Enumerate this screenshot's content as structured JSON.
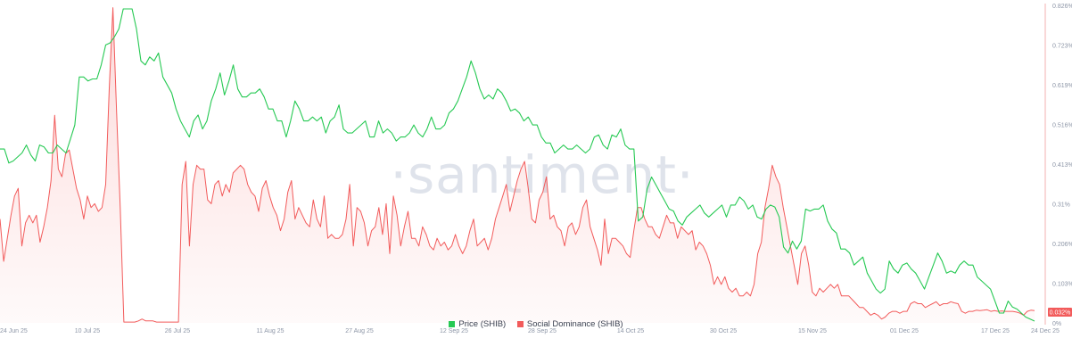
{
  "watermark": "·santiment·",
  "legend": [
    {
      "label": "Price (SHIB)",
      "color": "#26c953"
    },
    {
      "label": "Social Dominance (SHIB)",
      "color": "#f25b5b"
    }
  ],
  "chart_data": {
    "type": "line",
    "x_labels": [
      "24 Jun 25",
      "10 Jul 25",
      "26 Jul 25",
      "11 Aug 25",
      "27 Aug 25",
      "12 Sep 25",
      "28 Sep 25",
      "14 Oct 25",
      "30 Oct 25",
      "15 Nov 25",
      "01 Dec 25",
      "17 Dec 25",
      "24 Dec 25"
    ],
    "y_right_ticks": [
      "0.826%",
      "0.723%",
      "0.619%",
      "0.516%",
      "0.413%",
      "0.31%",
      "0.206%",
      "0.103%",
      "0%"
    ],
    "y_right_range": [
      0,
      0.826
    ],
    "current_value_label": "0.032%",
    "grid": false,
    "legend_position": "bottom",
    "series": [
      {
        "name": "Price (SHIB)",
        "color": "#26c953",
        "axis": "hidden",
        "values": [
          0.45,
          0.45,
          0.415,
          0.42,
          0.43,
          0.44,
          0.46,
          0.435,
          0.42,
          0.46,
          0.455,
          0.44,
          0.44,
          0.46,
          0.45,
          0.44,
          0.475,
          0.51,
          0.63,
          0.63,
          0.62,
          0.625,
          0.625,
          0.66,
          0.71,
          0.715,
          0.73,
          0.75,
          0.8,
          0.8,
          0.8,
          0.75,
          0.67,
          0.66,
          0.68,
          0.67,
          0.69,
          0.63,
          0.61,
          0.59,
          0.55,
          0.52,
          0.5,
          0.48,
          0.52,
          0.535,
          0.5,
          0.52,
          0.57,
          0.6,
          0.64,
          0.585,
          0.62,
          0.66,
          0.6,
          0.58,
          0.58,
          0.59,
          0.59,
          0.6,
          0.58,
          0.55,
          0.55,
          0.52,
          0.52,
          0.48,
          0.52,
          0.57,
          0.55,
          0.52,
          0.52,
          0.53,
          0.52,
          0.53,
          0.49,
          0.52,
          0.53,
          0.56,
          0.5,
          0.49,
          0.49,
          0.5,
          0.51,
          0.52,
          0.48,
          0.48,
          0.52,
          0.49,
          0.5,
          0.49,
          0.47,
          0.48,
          0.48,
          0.49,
          0.51,
          0.49,
          0.48,
          0.5,
          0.53,
          0.5,
          0.5,
          0.51,
          0.54,
          0.55,
          0.57,
          0.6,
          0.63,
          0.67,
          0.64,
          0.6,
          0.575,
          0.585,
          0.575,
          0.6,
          0.59,
          0.57,
          0.545,
          0.55,
          0.54,
          0.52,
          0.53,
          0.51,
          0.51,
          0.48,
          0.465,
          0.465,
          0.44,
          0.45,
          0.46,
          0.45,
          0.45,
          0.46,
          0.45,
          0.44,
          0.45,
          0.48,
          0.485,
          0.46,
          0.45,
          0.485,
          0.48,
          0.5,
          0.46,
          0.45,
          0.45,
          0.27,
          0.28,
          0.35,
          0.38,
          0.36,
          0.34,
          0.32,
          0.3,
          0.295,
          0.27,
          0.26,
          0.28,
          0.29,
          0.3,
          0.31,
          0.29,
          0.28,
          0.29,
          0.3,
          0.31,
          0.28,
          0.31,
          0.31,
          0.33,
          0.32,
          0.3,
          0.31,
          0.28,
          0.275,
          0.3,
          0.31,
          0.305,
          0.28,
          0.205,
          0.19,
          0.22,
          0.2,
          0.22,
          0.3,
          0.295,
          0.3,
          0.3,
          0.31,
          0.27,
          0.25,
          0.24,
          0.2,
          0.2,
          0.19,
          0.16,
          0.17,
          0.18,
          0.14,
          0.12,
          0.1,
          0.09,
          0.1,
          0.17,
          0.15,
          0.14,
          0.16,
          0.165,
          0.15,
          0.14,
          0.12,
          0.1,
          0.13,
          0.16,
          0.19,
          0.17,
          0.14,
          0.145,
          0.14,
          0.16,
          0.17,
          0.16,
          0.16,
          0.13,
          0.12,
          0.11,
          0.1,
          0.07,
          0.04,
          0.04,
          0.07,
          0.055,
          0.05,
          0.04,
          0.03,
          0.025,
          0.02
        ]
      },
      {
        "name": "Social Dominance (SHIB)",
        "color": "#f25b5b",
        "axis": "right",
        "values": [
          0.27,
          0.16,
          0.22,
          0.28,
          0.33,
          0.35,
          0.2,
          0.26,
          0.28,
          0.26,
          0.28,
          0.21,
          0.25,
          0.3,
          0.37,
          0.54,
          0.4,
          0.38,
          0.44,
          0.45,
          0.4,
          0.35,
          0.32,
          0.27,
          0.33,
          0.3,
          0.31,
          0.29,
          0.3,
          0.36,
          0.61,
          0.82,
          0.55,
          0.3,
          0.002,
          0.002,
          0.002,
          0.002,
          0.005,
          0.01,
          0.005,
          0.005,
          0.005,
          0.002,
          0.002,
          0.002,
          0.002,
          0.002,
          0.002,
          0.002,
          0.36,
          0.42,
          0.2,
          0.36,
          0.41,
          0.4,
          0.4,
          0.32,
          0.31,
          0.36,
          0.37,
          0.33,
          0.36,
          0.34,
          0.39,
          0.4,
          0.41,
          0.4,
          0.36,
          0.34,
          0.33,
          0.29,
          0.35,
          0.37,
          0.33,
          0.3,
          0.28,
          0.24,
          0.27,
          0.34,
          0.37,
          0.27,
          0.3,
          0.28,
          0.26,
          0.25,
          0.32,
          0.27,
          0.25,
          0.33,
          0.22,
          0.23,
          0.22,
          0.22,
          0.23,
          0.27,
          0.36,
          0.2,
          0.3,
          0.29,
          0.26,
          0.2,
          0.24,
          0.25,
          0.3,
          0.23,
          0.31,
          0.18,
          0.33,
          0.28,
          0.2,
          0.25,
          0.29,
          0.22,
          0.22,
          0.2,
          0.25,
          0.23,
          0.2,
          0.19,
          0.22,
          0.2,
          0.21,
          0.19,
          0.2,
          0.23,
          0.2,
          0.18,
          0.2,
          0.24,
          0.27,
          0.2,
          0.21,
          0.22,
          0.19,
          0.22,
          0.27,
          0.3,
          0.33,
          0.36,
          0.29,
          0.33,
          0.37,
          0.4,
          0.42,
          0.35,
          0.27,
          0.26,
          0.32,
          0.34,
          0.38,
          0.27,
          0.28,
          0.25,
          0.24,
          0.2,
          0.25,
          0.26,
          0.23,
          0.25,
          0.3,
          0.32,
          0.25,
          0.22,
          0.19,
          0.15,
          0.27,
          0.18,
          0.22,
          0.22,
          0.21,
          0.2,
          0.18,
          0.17,
          0.24,
          0.3,
          0.3,
          0.27,
          0.25,
          0.25,
          0.23,
          0.22,
          0.25,
          0.28,
          0.26,
          0.26,
          0.22,
          0.25,
          0.24,
          0.23,
          0.24,
          0.19,
          0.21,
          0.2,
          0.18,
          0.15,
          0.1,
          0.12,
          0.1,
          0.12,
          0.09,
          0.08,
          0.09,
          0.07,
          0.07,
          0.08,
          0.07,
          0.1,
          0.18,
          0.21,
          0.3,
          0.35,
          0.41,
          0.38,
          0.36,
          0.3,
          0.25,
          0.2,
          0.15,
          0.1,
          0.18,
          0.2,
          0.15,
          0.08,
          0.07,
          0.09,
          0.08,
          0.09,
          0.1,
          0.09,
          0.1,
          0.07,
          0.07,
          0.07,
          0.06,
          0.05,
          0.04,
          0.04,
          0.03,
          0.02,
          0.025,
          0.02,
          0.01,
          0.015,
          0.025,
          0.03,
          0.03,
          0.025,
          0.03,
          0.03,
          0.05,
          0.055,
          0.05,
          0.05,
          0.04,
          0.045,
          0.05,
          0.055,
          0.045,
          0.05,
          0.05,
          0.055,
          0.052,
          0.05,
          0.03,
          0.025,
          0.03,
          0.03,
          0.033,
          0.032,
          0.033,
          0.034,
          0.03,
          0.032,
          0.03,
          0.031,
          0.03,
          0.03,
          0.03,
          0.028,
          0.025,
          0.02,
          0.03,
          0.033,
          0.032
        ]
      }
    ]
  }
}
